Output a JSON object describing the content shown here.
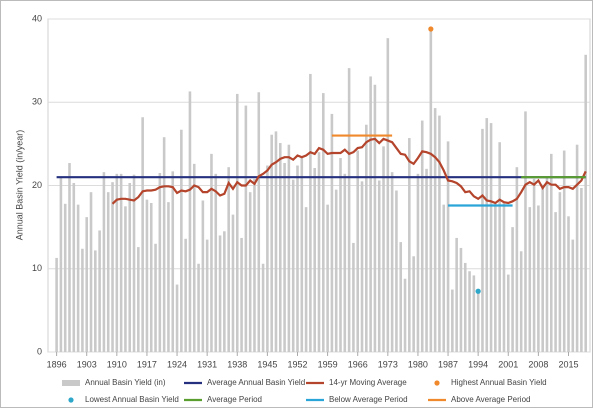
{
  "chart_data": {
    "type": "bar",
    "y_label": "Annual Basin Yield (in/year)",
    "xlim": [
      1894,
      2020
    ],
    "ylim": [
      0,
      40
    ],
    "xticks": [
      1896,
      1903,
      1910,
      1917,
      1924,
      1931,
      1938,
      1945,
      1952,
      1959,
      1966,
      1973,
      1980,
      1987,
      1994,
      2001,
      2008,
      2015
    ],
    "yticks": [
      0,
      10,
      20,
      30,
      40
    ],
    "grid": true,
    "legend": "bottom",
    "series": [
      {
        "name": "Annual Basin Yield (in)",
        "type": "bar",
        "color": "#c9c9c9",
        "x": [
          1896,
          1897,
          1898,
          1899,
          1900,
          1901,
          1902,
          1903,
          1904,
          1905,
          1906,
          1907,
          1908,
          1909,
          1910,
          1911,
          1912,
          1913,
          1914,
          1915,
          1916,
          1917,
          1918,
          1919,
          1920,
          1921,
          1922,
          1923,
          1924,
          1925,
          1926,
          1927,
          1928,
          1929,
          1930,
          1931,
          1932,
          1933,
          1934,
          1935,
          1936,
          1937,
          1938,
          1939,
          1940,
          1941,
          1942,
          1943,
          1944,
          1945,
          1946,
          1947,
          1948,
          1949,
          1950,
          1951,
          1952,
          1953,
          1954,
          1955,
          1956,
          1957,
          1958,
          1959,
          1960,
          1961,
          1962,
          1963,
          1964,
          1965,
          1966,
          1967,
          1968,
          1969,
          1970,
          1971,
          1972,
          1973,
          1974,
          1975,
          1976,
          1977,
          1978,
          1979,
          1980,
          1981,
          1982,
          1983,
          1984,
          1985,
          1986,
          1987,
          1988,
          1989,
          1990,
          1991,
          1992,
          1993,
          1994,
          1995,
          1996,
          1997,
          1998,
          1999,
          2000,
          2001,
          2002,
          2003,
          2004,
          2005,
          2006,
          2007,
          2008,
          2009,
          2010,
          2011,
          2012,
          2013,
          2014,
          2015,
          2016,
          2017,
          2018,
          2019
        ],
        "values": [
          11.3,
          21,
          17.8,
          22.7,
          20.3,
          17.7,
          12.4,
          16.2,
          19.2,
          12.2,
          14.6,
          21.6,
          19.2,
          20.4,
          21.4,
          21.4,
          17.5,
          20.3,
          21.3,
          12.6,
          28.2,
          18.3,
          17.9,
          13,
          21.5,
          25.8,
          18,
          21.7,
          8.1,
          26.7,
          13.6,
          31.3,
          22.6,
          10.6,
          18.2,
          13.5,
          23.8,
          21.4,
          14,
          14.5,
          22.2,
          16.5,
          31,
          13.7,
          29.6,
          19.2,
          20.8,
          31.2,
          10.6,
          22.4,
          26.1,
          26.5,
          25.1,
          22.7,
          24.9,
          20.7,
          22.4,
          23.5,
          17.4,
          33.4,
          22.1,
          24,
          31.1,
          17.7,
          28.6,
          19.5,
          23.3,
          21.4,
          34.1,
          13.1,
          24.2,
          20.5,
          27.3,
          33.1,
          32.1,
          20.6,
          24.7,
          37.7,
          21.6,
          19.4,
          13.2,
          8.8,
          25.7,
          11.5,
          21.4,
          27.8,
          22,
          38.8,
          29.3,
          28.4,
          17.7,
          25.3,
          7.5,
          13.7,
          12.5,
          10.7,
          9.7,
          9.2,
          7.3,
          26.8,
          28.1,
          27.5,
          17.8,
          25.2,
          18,
          9.3,
          15,
          22.2,
          12.1,
          28.9,
          17.4,
          20.8,
          17.6,
          20.1,
          21,
          23.8,
          16.8,
          19.2,
          24.2,
          16.3,
          13.5,
          24.9,
          19.7,
          35.7
        ]
      },
      {
        "name": "Average Annual Basin Yield",
        "type": "line",
        "color": "#25317f",
        "x": [
          1896,
          2019
        ],
        "values": [
          21,
          21
        ]
      },
      {
        "name": "14-yr Moving Average",
        "type": "line",
        "color": "#b4442b",
        "x": [
          1909,
          1910,
          1911,
          1912,
          1913,
          1914,
          1915,
          1916,
          1917,
          1918,
          1919,
          1920,
          1921,
          1922,
          1923,
          1924,
          1925,
          1926,
          1927,
          1928,
          1929,
          1930,
          1931,
          1932,
          1933,
          1934,
          1935,
          1936,
          1937,
          1938,
          1939,
          1940,
          1941,
          1942,
          1943,
          1944,
          1945,
          1946,
          1947,
          1948,
          1949,
          1950,
          1951,
          1952,
          1953,
          1954,
          1955,
          1956,
          1957,
          1958,
          1959,
          1960,
          1961,
          1962,
          1963,
          1964,
          1965,
          1966,
          1967,
          1968,
          1969,
          1970,
          1971,
          1972,
          1973,
          1974,
          1975,
          1976,
          1977,
          1978,
          1979,
          1980,
          1981,
          1982,
          1983,
          1984,
          1985,
          1986,
          1987,
          1988,
          1989,
          1990,
          1991,
          1992,
          1993,
          1994,
          1995,
          1996,
          1997,
          1998,
          1999,
          2000,
          2001,
          2002,
          2003,
          2004,
          2005,
          2006,
          2007,
          2008,
          2009,
          2010,
          2011,
          2012,
          2013,
          2014,
          2015,
          2016,
          2017,
          2018,
          2019
        ],
        "values": [
          17.8,
          18.3,
          18.4,
          18.4,
          18.3,
          18.2,
          18.6,
          19.3,
          19.4,
          19.4,
          19.5,
          19.8,
          19.9,
          19.9,
          19.8,
          19.1,
          19.4,
          19.3,
          19.5,
          20,
          19.8,
          19.2,
          19.2,
          19.6,
          19.3,
          18.8,
          19,
          20.3,
          19.6,
          20.4,
          20,
          20,
          20.6,
          20.2,
          21.1,
          21.4,
          21.8,
          22.5,
          22.8,
          23.2,
          23.4,
          23.4,
          23.1,
          23.6,
          23.4,
          23.6,
          24,
          23.8,
          24.5,
          24.3,
          23.8,
          23.9,
          23.9,
          23.9,
          24.3,
          23.8,
          24,
          24.5,
          24.6,
          25.2,
          25.5,
          25.6,
          25.1,
          25.6,
          25.4,
          25.2,
          24.5,
          23.8,
          23.7,
          22.9,
          22.6,
          23.3,
          24.1,
          24,
          23.8,
          23.4,
          22.8,
          21.8,
          20.6,
          20.5,
          20.3,
          19.9,
          19.2,
          19.3,
          18.7,
          18.4,
          18.8,
          18.2,
          18.1,
          17.9,
          18.3,
          18,
          17.9,
          18.1,
          18.4,
          19.2,
          20.1,
          20.4,
          20.1,
          20.6,
          19.7,
          20.4,
          20.1,
          20.1,
          19.6,
          19.8,
          19.8,
          19.6,
          20.1,
          20.6,
          21.7
        ]
      },
      {
        "name": "Highest Annual Basin Yield",
        "type": "scatter",
        "color": "#f0892b",
        "x": [
          1983
        ],
        "values": [
          38.8
        ]
      },
      {
        "name": "Lowest Annual Basin Yield",
        "type": "scatter",
        "color": "#2fa7c9",
        "x": [
          1994
        ],
        "values": [
          7.3
        ]
      },
      {
        "name": "Average Period",
        "type": "line",
        "color": "#5a9e2f",
        "x": [
          2004,
          2019
        ],
        "values": [
          21,
          21
        ]
      },
      {
        "name": "Below Average Period",
        "type": "line",
        "color": "#2aa5d8",
        "x": [
          1987,
          2002
        ],
        "values": [
          17.6,
          17.6
        ]
      },
      {
        "name": "Above Average Period",
        "type": "line",
        "color": "#f0892b",
        "x": [
          1960,
          1974
        ],
        "values": [
          26,
          26
        ]
      }
    ]
  }
}
